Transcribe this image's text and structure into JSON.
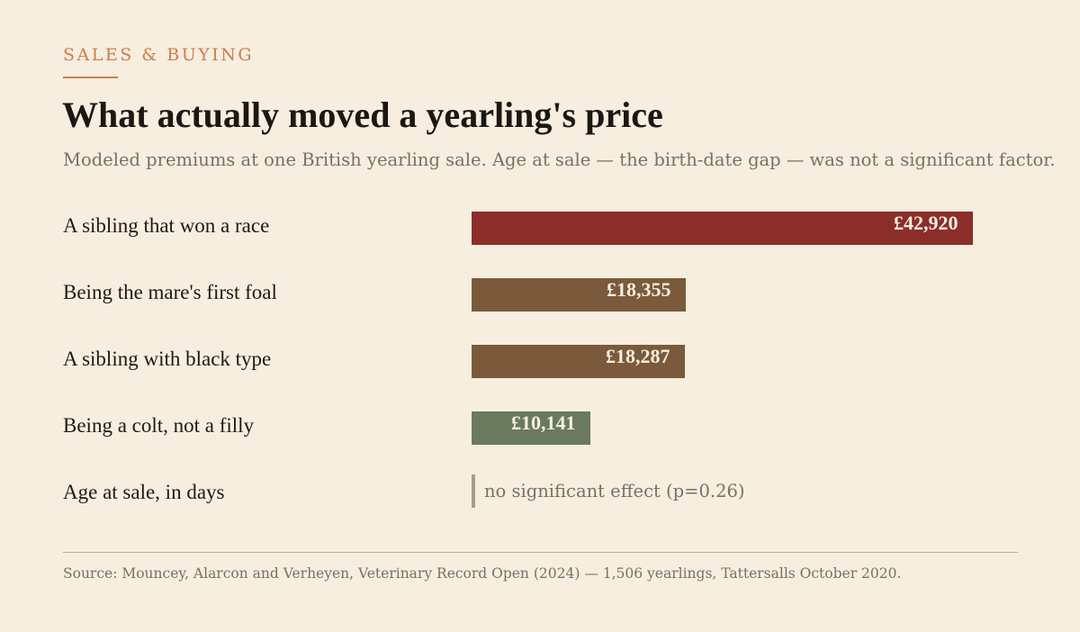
{
  "eyebrow": "SALES & BUYING",
  "title": "What actually moved a yearling's price",
  "subtitle": "Modeled premiums at one British yearling sale. Age at sale — the birth-date gap — was not a significant factor.",
  "source": "Source: Mouncey, Alarcon and Verheyen, Veterinary Record Open (2024) — 1,506 yearlings, Tattersalls October 2020.",
  "colors": {
    "accent": "#d17b4a",
    "top_bar": "#8b2e29",
    "mid_bar": "#7a5a3a",
    "colt_bar": "#6a7a5e",
    "muted_text": "#7a7062",
    "null_tick": "#a89c88"
  },
  "chart_data": {
    "type": "bar",
    "orientation": "horizontal",
    "categories": [
      "A sibling that won a race",
      "Being the mare's first foal",
      "A sibling with black type",
      "Being a colt, not a filly",
      "Age at sale, in days"
    ],
    "values": [
      42920,
      18355,
      18287,
      10141,
      null
    ],
    "value_labels": [
      "£42,920",
      "£18,355",
      "£18,287",
      "£10,141",
      ""
    ],
    "unit": "£",
    "xlim": [
      0,
      42920
    ],
    "grid": false,
    "null_note": "no significant effect (p=0.26)",
    "bar_colors": [
      "#8b2e29",
      "#7a5a3a",
      "#7a5a3a",
      "#6a7a5e",
      "#a89c88"
    ]
  }
}
